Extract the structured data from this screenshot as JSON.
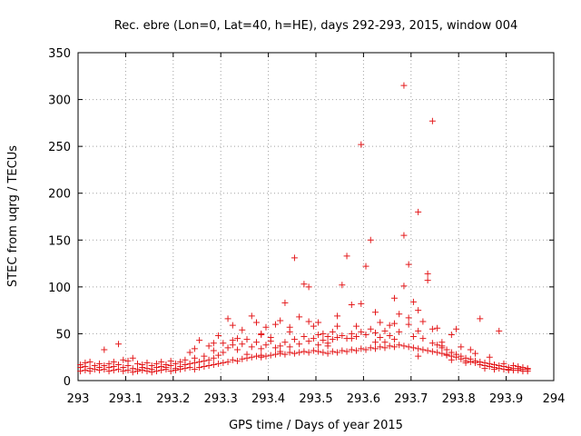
{
  "chart_data": {
    "type": "scatter",
    "title": "Rec. ebre (Lon=0, Lat=40, h=HE), days 292-293, 2015, window 004",
    "xlabel": "GPS time / Days of year 2015",
    "ylabel": "STEC from uqrg / TECUs",
    "xlim": [
      293,
      294
    ],
    "ylim": [
      0,
      350
    ],
    "x_ticks": [
      293,
      293.1,
      293.2,
      293.3,
      293.4,
      293.5,
      293.6,
      293.7,
      293.8,
      293.9,
      294
    ],
    "x_tick_labels": [
      "293",
      "293.1",
      "293.2",
      "293.3",
      "293.4",
      "293.5",
      "293.6",
      "293.7",
      "293.8",
      "293.9",
      "294"
    ],
    "y_ticks": [
      0,
      50,
      100,
      150,
      200,
      250,
      300,
      350
    ],
    "y_tick_labels": [
      "0",
      "50",
      "100",
      "150",
      "200",
      "250",
      "300",
      "350"
    ],
    "grid": true,
    "marker": "+",
    "color": "#e41a1c",
    "series": [
      {
        "points": [
          [
            293.005,
            10
          ],
          [
            293.005,
            14
          ],
          [
            293.005,
            17
          ],
          [
            293.015,
            11
          ],
          [
            293.015,
            15
          ],
          [
            293.015,
            19
          ],
          [
            293.025,
            10
          ],
          [
            293.025,
            13
          ],
          [
            293.025,
            20
          ],
          [
            293.035,
            12
          ],
          [
            293.035,
            16
          ],
          [
            293.045,
            11
          ],
          [
            293.045,
            14
          ],
          [
            293.045,
            18
          ],
          [
            293.055,
            12
          ],
          [
            293.055,
            16
          ],
          [
            293.055,
            33
          ],
          [
            293.065,
            10
          ],
          [
            293.065,
            14
          ],
          [
            293.065,
            18
          ],
          [
            293.075,
            11
          ],
          [
            293.075,
            15
          ],
          [
            293.075,
            20
          ],
          [
            293.085,
            12
          ],
          [
            293.085,
            17
          ],
          [
            293.085,
            39
          ],
          [
            293.095,
            10
          ],
          [
            293.095,
            14
          ],
          [
            293.095,
            22
          ],
          [
            293.105,
            11
          ],
          [
            293.105,
            16
          ],
          [
            293.105,
            21
          ],
          [
            293.115,
            9
          ],
          [
            293.115,
            13
          ],
          [
            293.115,
            24
          ],
          [
            293.125,
            10
          ],
          [
            293.125,
            12
          ],
          [
            293.125,
            18
          ],
          [
            293.135,
            11
          ],
          [
            293.135,
            14
          ],
          [
            293.135,
            17
          ],
          [
            293.145,
            10
          ],
          [
            293.145,
            13
          ],
          [
            293.145,
            19
          ],
          [
            293.155,
            9
          ],
          [
            293.155,
            12
          ],
          [
            293.155,
            16
          ],
          [
            293.165,
            10
          ],
          [
            293.165,
            14
          ],
          [
            293.165,
            18
          ],
          [
            293.175,
            11
          ],
          [
            293.175,
            15
          ],
          [
            293.175,
            20
          ],
          [
            293.185,
            12
          ],
          [
            293.185,
            17
          ],
          [
            293.185,
            14
          ],
          [
            293.195,
            10
          ],
          [
            293.195,
            16
          ],
          [
            293.195,
            21
          ],
          [
            293.205,
            11
          ],
          [
            293.205,
            13
          ],
          [
            293.205,
            18
          ],
          [
            293.215,
            12
          ],
          [
            293.215,
            15
          ],
          [
            293.215,
            20
          ],
          [
            293.225,
            13
          ],
          [
            293.225,
            17
          ],
          [
            293.225,
            22
          ],
          [
            293.235,
            14
          ],
          [
            293.235,
            18
          ],
          [
            293.235,
            30
          ],
          [
            293.245,
            12
          ],
          [
            293.245,
            19
          ],
          [
            293.245,
            24
          ],
          [
            293.255,
            14
          ],
          [
            293.255,
            20
          ],
          [
            293.255,
            43
          ],
          [
            293.265,
            15
          ],
          [
            293.265,
            21
          ],
          [
            293.265,
            26
          ],
          [
            293.275,
            16
          ],
          [
            293.275,
            22
          ],
          [
            293.275,
            37
          ],
          [
            293.285,
            17
          ],
          [
            293.285,
            24
          ],
          [
            293.285,
            32
          ],
          [
            293.295,
            18
          ],
          [
            293.295,
            27
          ],
          [
            293.295,
            48
          ],
          [
            293.305,
            19
          ],
          [
            293.305,
            30
          ],
          [
            293.305,
            40
          ],
          [
            293.315,
            20
          ],
          [
            293.315,
            35
          ],
          [
            293.315,
            66
          ],
          [
            293.325,
            22
          ],
          [
            293.325,
            38
          ],
          [
            293.325,
            59
          ],
          [
            293.335,
            21
          ],
          [
            293.335,
            33
          ],
          [
            293.335,
            45
          ],
          [
            293.345,
            23
          ],
          [
            293.345,
            39
          ],
          [
            293.345,
            54
          ],
          [
            293.355,
            24
          ],
          [
            293.355,
            28
          ],
          [
            293.355,
            44
          ],
          [
            293.365,
            25
          ],
          [
            293.365,
            36
          ],
          [
            293.365,
            69
          ],
          [
            293.375,
            26
          ],
          [
            293.375,
            41
          ],
          [
            293.375,
            62
          ],
          [
            293.385,
            27
          ],
          [
            293.385,
            34
          ],
          [
            293.385,
            50
          ],
          [
            293.395,
            26
          ],
          [
            293.395,
            38
          ],
          [
            293.395,
            57
          ],
          [
            293.405,
            27
          ],
          [
            293.405,
            42
          ],
          [
            293.405,
            46
          ],
          [
            293.415,
            28
          ],
          [
            293.415,
            35
          ],
          [
            293.415,
            60
          ],
          [
            293.425,
            29
          ],
          [
            293.425,
            37
          ],
          [
            293.425,
            64
          ],
          [
            293.435,
            28
          ],
          [
            293.435,
            41
          ],
          [
            293.435,
            83
          ],
          [
            293.445,
            30
          ],
          [
            293.445,
            36
          ],
          [
            293.445,
            52
          ],
          [
            293.455,
            29
          ],
          [
            293.455,
            44
          ],
          [
            293.455,
            131
          ],
          [
            293.465,
            30
          ],
          [
            293.465,
            39
          ],
          [
            293.465,
            68
          ],
          [
            293.475,
            31
          ],
          [
            293.475,
            47
          ],
          [
            293.475,
            103
          ],
          [
            293.485,
            30
          ],
          [
            293.485,
            42
          ],
          [
            293.485,
            100
          ],
          [
            293.495,
            32
          ],
          [
            293.495,
            45
          ],
          [
            293.495,
            58
          ],
          [
            293.505,
            31
          ],
          [
            293.505,
            38
          ],
          [
            293.505,
            49
          ],
          [
            293.515,
            30
          ],
          [
            293.515,
            43
          ],
          [
            293.515,
            50
          ],
          [
            293.525,
            29
          ],
          [
            293.525,
            40
          ],
          [
            293.525,
            47
          ],
          [
            293.535,
            31
          ],
          [
            293.535,
            44
          ],
          [
            293.535,
            52
          ],
          [
            293.545,
            30
          ],
          [
            293.545,
            46
          ],
          [
            293.545,
            69
          ],
          [
            293.555,
            32
          ],
          [
            293.555,
            48
          ],
          [
            293.555,
            102
          ],
          [
            293.565,
            31
          ],
          [
            293.565,
            45
          ],
          [
            293.565,
            133
          ],
          [
            293.575,
            33
          ],
          [
            293.575,
            50
          ],
          [
            293.575,
            81
          ],
          [
            293.585,
            32
          ],
          [
            293.585,
            47
          ],
          [
            293.585,
            58
          ],
          [
            293.595,
            34
          ],
          [
            293.595,
            52
          ],
          [
            293.595,
            252
          ],
          [
            293.605,
            33
          ],
          [
            293.605,
            49
          ],
          [
            293.605,
            122
          ],
          [
            293.615,
            35
          ],
          [
            293.615,
            55
          ],
          [
            293.615,
            150
          ],
          [
            293.625,
            34
          ],
          [
            293.625,
            51
          ],
          [
            293.625,
            73
          ],
          [
            293.635,
            36
          ],
          [
            293.635,
            46
          ],
          [
            293.635,
            62
          ],
          [
            293.645,
            35
          ],
          [
            293.645,
            53
          ],
          [
            293.645,
            41
          ],
          [
            293.655,
            37
          ],
          [
            293.655,
            48
          ],
          [
            293.655,
            59
          ],
          [
            293.665,
            36
          ],
          [
            293.665,
            44
          ],
          [
            293.665,
            88
          ],
          [
            293.675,
            38
          ],
          [
            293.675,
            52
          ],
          [
            293.675,
            71
          ],
          [
            293.685,
            37
          ],
          [
            293.685,
            101
          ],
          [
            293.685,
            315
          ],
          [
            293.695,
            36
          ],
          [
            293.695,
            60
          ],
          [
            293.695,
            124
          ],
          [
            293.705,
            35
          ],
          [
            293.705,
            47
          ],
          [
            293.705,
            84
          ],
          [
            293.715,
            34
          ],
          [
            293.715,
            53
          ],
          [
            293.715,
            180
          ],
          [
            293.725,
            33
          ],
          [
            293.725,
            45
          ],
          [
            293.725,
            63
          ],
          [
            293.735,
            32
          ],
          [
            293.735,
            107
          ],
          [
            293.735,
            114
          ],
          [
            293.745,
            31
          ],
          [
            293.745,
            40
          ],
          [
            293.745,
            277
          ],
          [
            293.755,
            30
          ],
          [
            293.755,
            38
          ],
          [
            293.755,
            56
          ],
          [
            293.765,
            29
          ],
          [
            293.765,
            35
          ],
          [
            293.765,
            41
          ],
          [
            293.775,
            27
          ],
          [
            293.775,
            33
          ],
          [
            293.775,
            28
          ],
          [
            293.785,
            26
          ],
          [
            293.785,
            30
          ],
          [
            293.785,
            22
          ],
          [
            293.795,
            25
          ],
          [
            293.795,
            28
          ],
          [
            293.795,
            55
          ],
          [
            293.805,
            23
          ],
          [
            293.805,
            26
          ],
          [
            293.805,
            36
          ],
          [
            293.815,
            21
          ],
          [
            293.815,
            24
          ],
          [
            293.815,
            19
          ],
          [
            293.825,
            20
          ],
          [
            293.825,
            23
          ],
          [
            293.825,
            33
          ],
          [
            293.835,
            19
          ],
          [
            293.835,
            21
          ],
          [
            293.835,
            29
          ],
          [
            293.845,
            17
          ],
          [
            293.845,
            20
          ],
          [
            293.845,
            66
          ],
          [
            293.855,
            16
          ],
          [
            293.855,
            19
          ],
          [
            293.855,
            13
          ],
          [
            293.865,
            15
          ],
          [
            293.865,
            18
          ],
          [
            293.865,
            25
          ],
          [
            293.875,
            14
          ],
          [
            293.875,
            17
          ],
          [
            293.875,
            12
          ],
          [
            293.885,
            13
          ],
          [
            293.885,
            16
          ],
          [
            293.885,
            53
          ],
          [
            293.895,
            12
          ],
          [
            293.895,
            15
          ],
          [
            293.895,
            18
          ],
          [
            293.905,
            12
          ],
          [
            293.905,
            14
          ],
          [
            293.905,
            11
          ],
          [
            293.915,
            11
          ],
          [
            293.915,
            13
          ],
          [
            293.915,
            16
          ],
          [
            293.925,
            11
          ],
          [
            293.925,
            13
          ],
          [
            293.925,
            15
          ],
          [
            293.935,
            10
          ],
          [
            293.935,
            12
          ],
          [
            293.935,
            14
          ],
          [
            293.945,
            10
          ],
          [
            293.945,
            12
          ],
          [
            293.945,
            13
          ],
          [
            293.505,
            62
          ],
          [
            293.545,
            58
          ],
          [
            293.595,
            82
          ],
          [
            293.665,
            61
          ],
          [
            293.695,
            67
          ],
          [
            293.575,
            45
          ],
          [
            293.485,
            63
          ],
          [
            293.445,
            57
          ],
          [
            293.385,
            49
          ],
          [
            293.325,
            43
          ],
          [
            293.285,
            40
          ],
          [
            293.245,
            34
          ],
          [
            293.685,
            155
          ],
          [
            293.715,
            75
          ],
          [
            293.745,
            55
          ],
          [
            293.765,
            37
          ],
          [
            293.785,
            49
          ],
          [
            293.385,
            25
          ],
          [
            293.425,
            31
          ],
          [
            293.525,
            37
          ],
          [
            293.625,
            41
          ],
          [
            293.715,
            26
          ]
        ]
      }
    ]
  }
}
